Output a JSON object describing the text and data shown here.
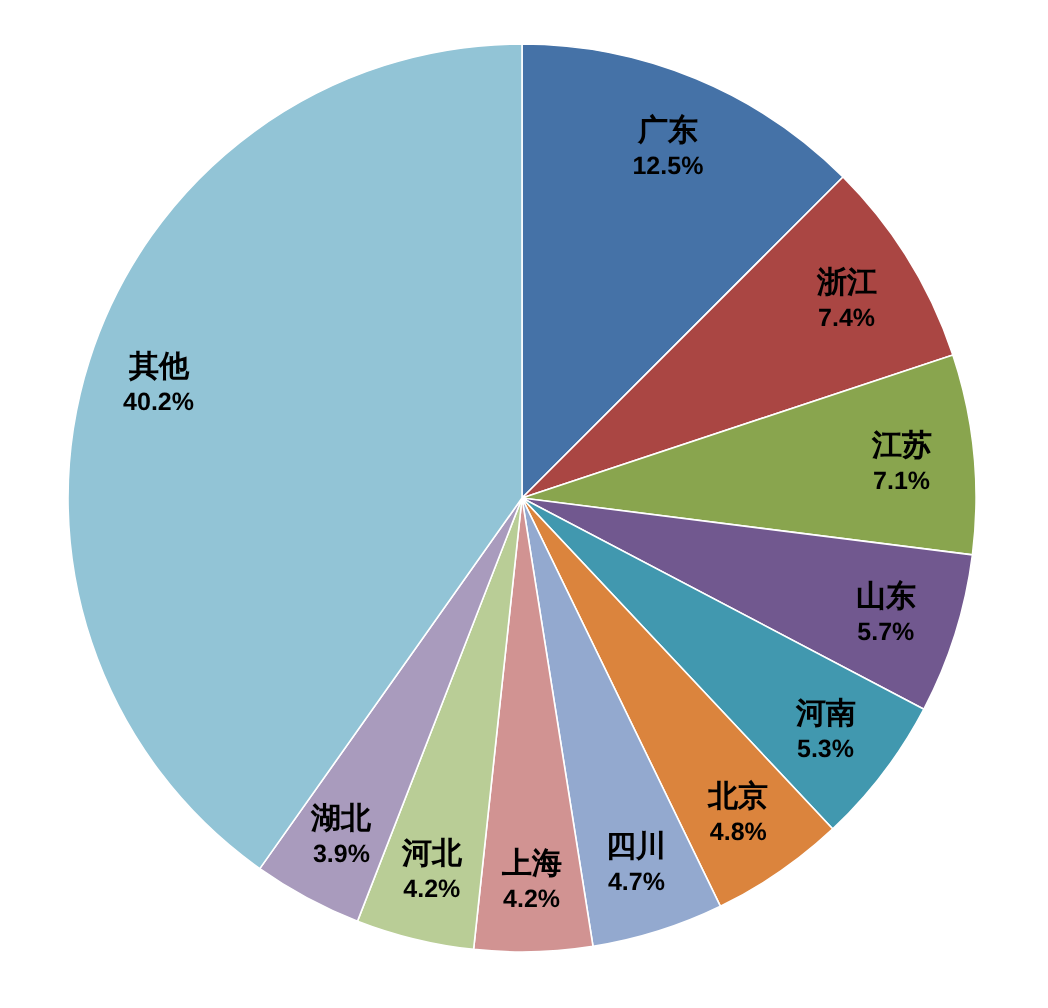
{
  "chart_data": {
    "type": "pie",
    "categories": [
      "广东",
      "浙江",
      "江苏",
      "山东",
      "河南",
      "北京",
      "四川",
      "上海",
      "河北",
      "湖北",
      "其他"
    ],
    "values": [
      12.5,
      7.4,
      7.1,
      5.7,
      5.3,
      4.8,
      4.7,
      4.2,
      4.2,
      3.9,
      40.2
    ],
    "value_labels": [
      "12.5%",
      "7.4%",
      "7.1%",
      "5.7%",
      "5.3%",
      "4.8%",
      "4.7%",
      "4.2%",
      "4.2%",
      "3.9%",
      "40.2%"
    ],
    "colors": [
      "#4572a7",
      "#aa4643",
      "#89a54e",
      "#71588f",
      "#4198af",
      "#db843d",
      "#93a9cf",
      "#d19392",
      "#b9cd96",
      "#a99bbd",
      "#92c4d6"
    ]
  }
}
